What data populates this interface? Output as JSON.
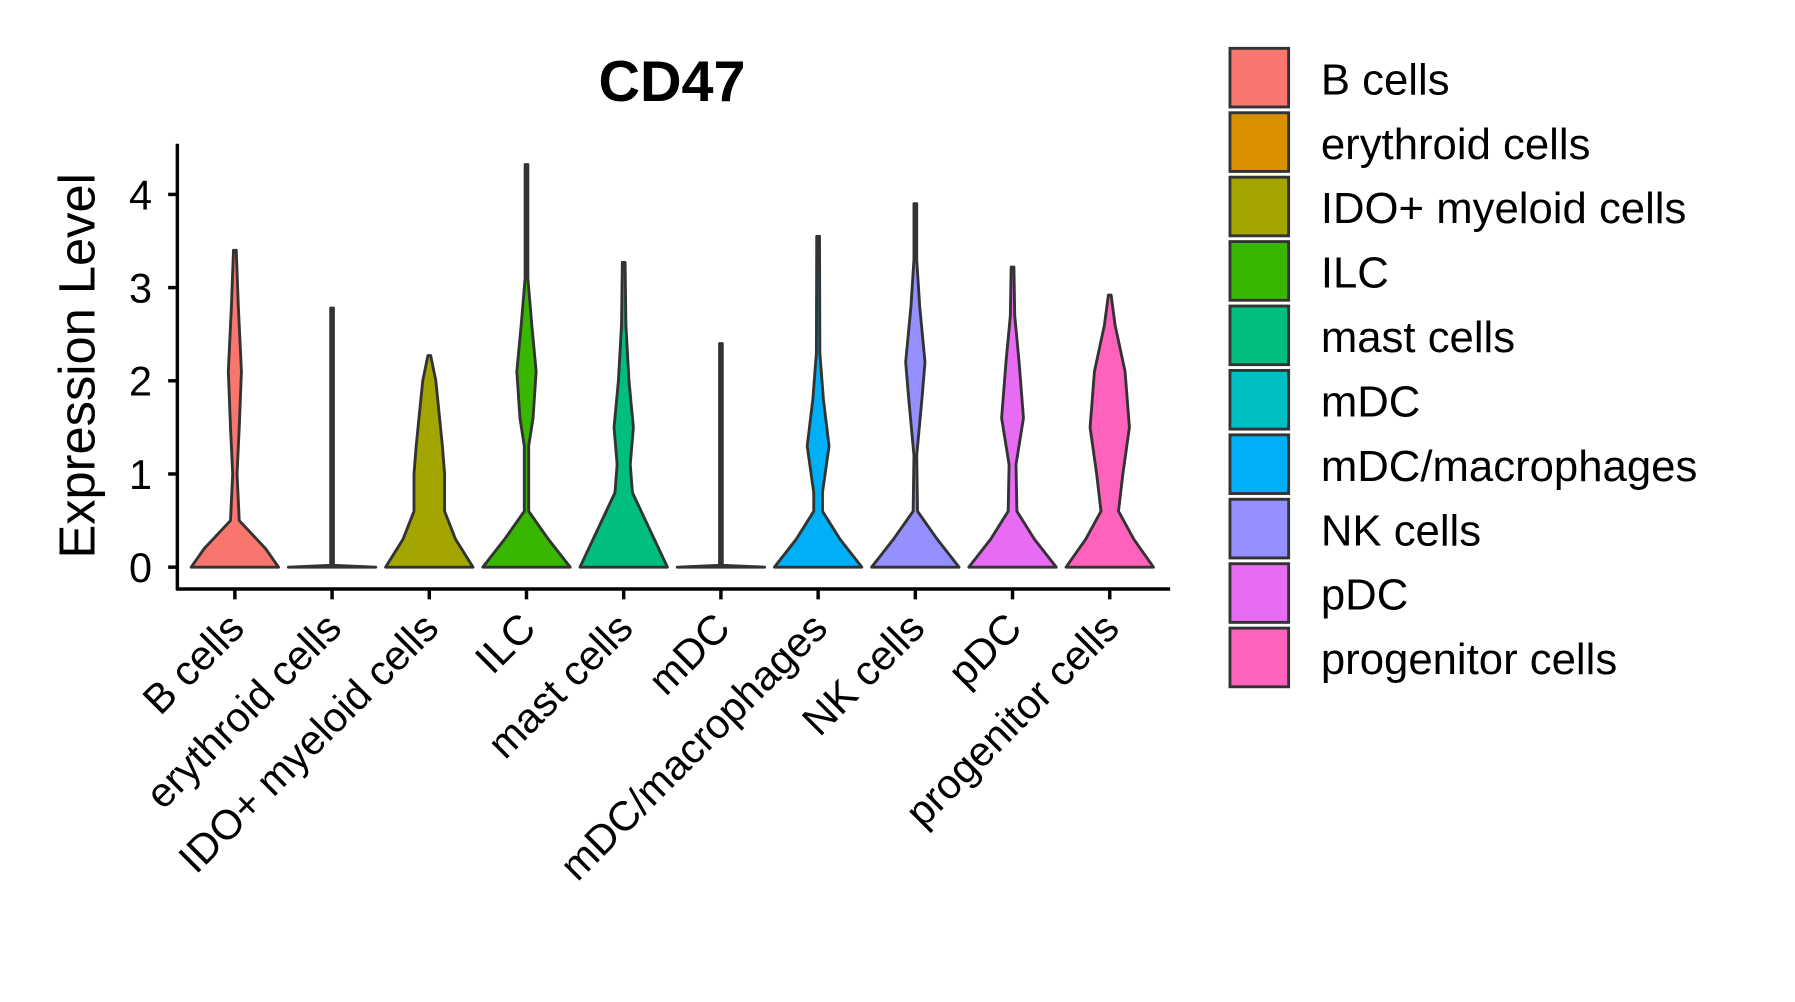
{
  "chart_data": {
    "type": "violin",
    "title": "CD47",
    "xlabel": "",
    "ylabel": "Expression Level",
    "ylim": [
      0,
      4.5
    ],
    "yticks": [
      0,
      1,
      2,
      3,
      4
    ],
    "grid": false,
    "legend_placement": "right",
    "categories": [
      "B cells",
      "erythroid cells",
      "IDO+ myeloid cells",
      "ILC",
      "mast cells",
      "mDC",
      "mDC/macrophages",
      "NK cells",
      "pDC",
      "progenitor cells"
    ],
    "colors": [
      "#F8766D",
      "#D89000",
      "#A3A500",
      "#39B600",
      "#00BF7D",
      "#00BFC4",
      "#00B0F6",
      "#9590FF",
      "#E76BF3",
      "#FF62BC"
    ],
    "series": [
      {
        "name": "B cells",
        "max": 3.4,
        "density": [
          [
            0,
            1
          ],
          [
            0.2,
            0.7
          ],
          [
            0.5,
            0.1
          ],
          [
            1,
            0.05
          ],
          [
            1.5,
            0.1
          ],
          [
            2.1,
            0.15
          ],
          [
            2.8,
            0.08
          ],
          [
            3.4,
            0
          ]
        ]
      },
      {
        "name": "erythroid cells",
        "max": 2.78,
        "density": [
          [
            0,
            1
          ],
          [
            0.02,
            0
          ],
          [
            2.78,
            0
          ]
        ]
      },
      {
        "name": "IDO+ myeloid cells",
        "max": 2.27,
        "density": [
          [
            0,
            1
          ],
          [
            0.3,
            0.6
          ],
          [
            0.6,
            0.35
          ],
          [
            1,
            0.35
          ],
          [
            1.3,
            0.3
          ],
          [
            2,
            0.15
          ],
          [
            2.27,
            0
          ]
        ]
      },
      {
        "name": "ILC",
        "max": 4.32,
        "density": [
          [
            0,
            1
          ],
          [
            0.3,
            0.5
          ],
          [
            0.6,
            0.05
          ],
          [
            1.3,
            0.05
          ],
          [
            1.6,
            0.15
          ],
          [
            2.1,
            0.22
          ],
          [
            2.6,
            0.12
          ],
          [
            3.1,
            0.03
          ],
          [
            4.32,
            0
          ]
        ]
      },
      {
        "name": "mast cells",
        "max": 3.27,
        "density": [
          [
            0,
            1
          ],
          [
            0.4,
            0.6
          ],
          [
            0.8,
            0.2
          ],
          [
            1.1,
            0.15
          ],
          [
            1.5,
            0.22
          ],
          [
            2,
            0.12
          ],
          [
            2.6,
            0.05
          ],
          [
            3.27,
            0
          ]
        ]
      },
      {
        "name": "mDC",
        "max": 2.4,
        "density": [
          [
            0,
            1
          ],
          [
            0.02,
            0
          ],
          [
            2.4,
            0
          ]
        ]
      },
      {
        "name": "mDC/macrophages",
        "max": 3.55,
        "density": [
          [
            0,
            1
          ],
          [
            0.3,
            0.5
          ],
          [
            0.6,
            0.1
          ],
          [
            0.8,
            0.1
          ],
          [
            1.3,
            0.25
          ],
          [
            1.8,
            0.12
          ],
          [
            2.3,
            0.04
          ],
          [
            3.55,
            0
          ]
        ]
      },
      {
        "name": "NK cells",
        "max": 3.9,
        "density": [
          [
            0,
            1
          ],
          [
            0.3,
            0.5
          ],
          [
            0.6,
            0.05
          ],
          [
            1.2,
            0.03
          ],
          [
            1.8,
            0.15
          ],
          [
            2.2,
            0.22
          ],
          [
            2.8,
            0.1
          ],
          [
            3.3,
            0.02
          ],
          [
            3.9,
            0
          ]
        ]
      },
      {
        "name": "pDC",
        "max": 3.22,
        "density": [
          [
            0,
            1
          ],
          [
            0.3,
            0.5
          ],
          [
            0.6,
            0.1
          ],
          [
            1.1,
            0.08
          ],
          [
            1.6,
            0.25
          ],
          [
            2.2,
            0.15
          ],
          [
            2.7,
            0.05
          ],
          [
            3.22,
            0
          ]
        ]
      },
      {
        "name": "progenitor cells",
        "max": 2.92,
        "density": [
          [
            0,
            1
          ],
          [
            0.3,
            0.55
          ],
          [
            0.6,
            0.2
          ],
          [
            1,
            0.3
          ],
          [
            1.5,
            0.45
          ],
          [
            2.1,
            0.35
          ],
          [
            2.6,
            0.12
          ],
          [
            2.92,
            0
          ]
        ]
      }
    ]
  }
}
